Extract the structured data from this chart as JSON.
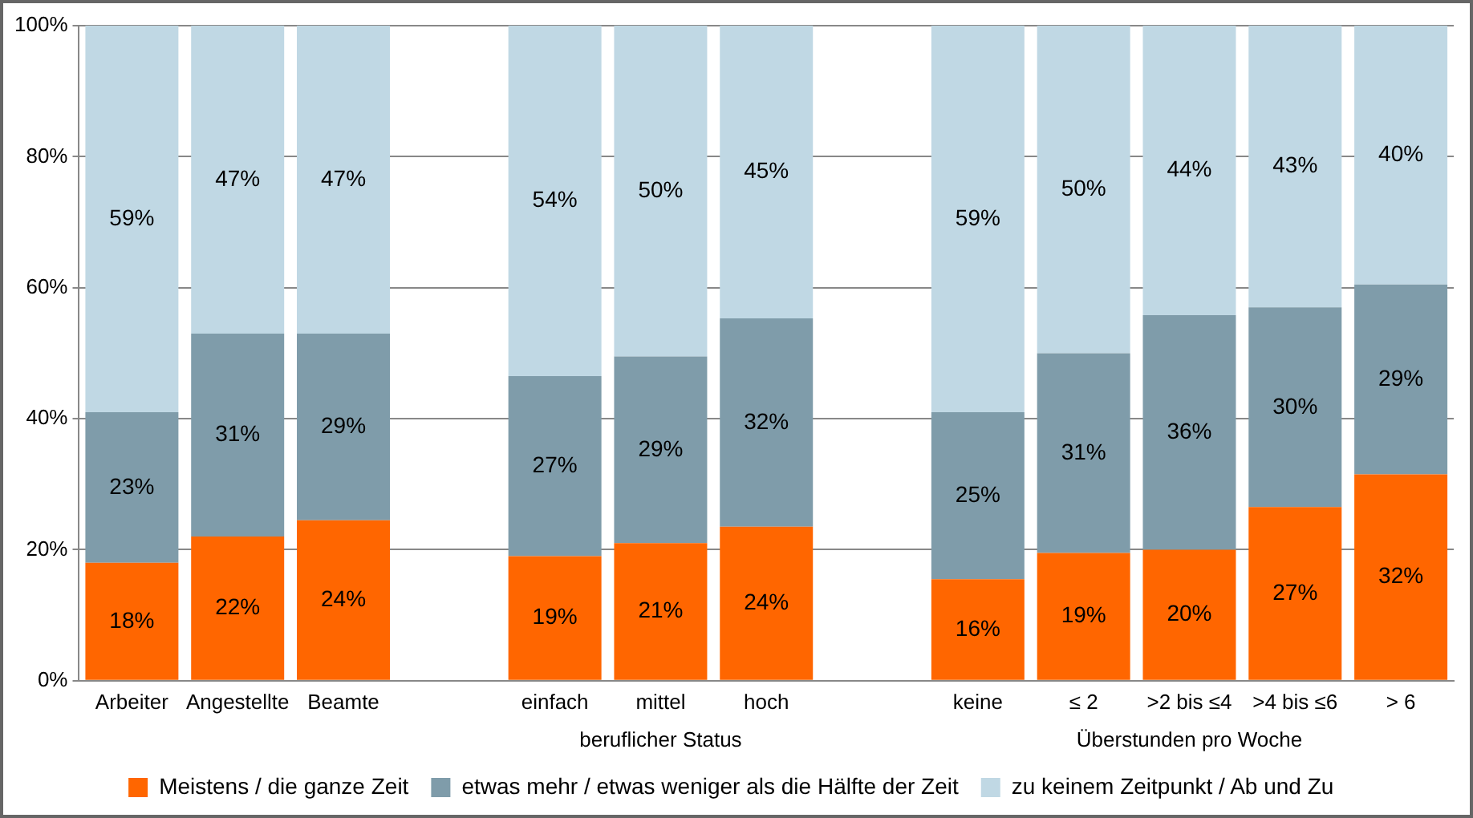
{
  "chart_data": {
    "type": "bar",
    "stacked": true,
    "categories": [
      "Arbeiter",
      "Angestellte",
      "Beamte",
      null,
      "einfach",
      "mittel",
      "hoch",
      null,
      "keine",
      "≤ 2",
      ">2 bis ≤4",
      ">4 bis ≤6",
      "> 6"
    ],
    "series": [
      {
        "name": "Meistens / die ganze Zeit",
        "color": "#ff6600",
        "values": [
          18,
          22,
          24.5,
          null,
          19,
          21,
          23.5,
          null,
          15.5,
          19.5,
          20,
          26.5,
          31.5
        ],
        "value_labels": [
          "18%",
          "22%",
          "24%",
          null,
          "19%",
          "21%",
          "24%",
          null,
          "16%",
          "19%",
          "20%",
          "27%",
          "32%"
        ]
      },
      {
        "name": "etwas mehr / etwas weniger als die Hälfte der Zeit",
        "color": "#7f9caa",
        "values": [
          23,
          31,
          28.5,
          null,
          27.5,
          28.5,
          31.8,
          null,
          25.5,
          30.5,
          35.8,
          30.5,
          29
        ],
        "value_labels": [
          "23%",
          "31%",
          "29%",
          null,
          "27%",
          "29%",
          "32%",
          null,
          "25%",
          "31%",
          "36%",
          "30%",
          "29%"
        ]
      },
      {
        "name": "zu keinem Zeitpunkt / Ab und Zu",
        "color": "#c0d8e4",
        "values": [
          59,
          47,
          47,
          null,
          53.5,
          50.5,
          44.7,
          null,
          59,
          50,
          44.2,
          43,
          39.5
        ],
        "value_labels": [
          "59%",
          "47%",
          "47%",
          null,
          "54%",
          "50%",
          "45%",
          null,
          "59%",
          "50%",
          "44%",
          "43%",
          "40%"
        ]
      }
    ],
    "ylim": [
      0,
      100
    ],
    "yticks": [
      {
        "value": 0,
        "label": "0%"
      },
      {
        "value": 20,
        "label": "20%"
      },
      {
        "value": 40,
        "label": "40%"
      },
      {
        "value": 60,
        "label": "60%"
      },
      {
        "value": 80,
        "label": "80%"
      },
      {
        "value": 100,
        "label": "100%"
      }
    ],
    "grid": "y",
    "legend": "bottom",
    "annotations": [
      "beruflicher Status",
      "Überstunden pro Woche"
    ]
  }
}
